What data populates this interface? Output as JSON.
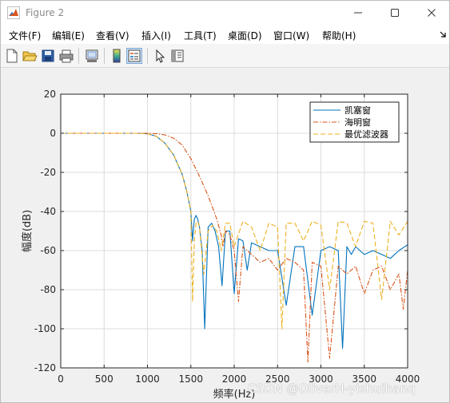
{
  "window": {
    "title": "Figure 2",
    "minimize_icon": "minimize-icon",
    "maximize_icon": "maximize-icon",
    "close_icon": "close-icon"
  },
  "menu": {
    "items": [
      "文件(F)",
      "编辑(E)",
      "查看(V)",
      "插入(I)",
      "工具(T)",
      "桌面(D)",
      "窗口(W)",
      "帮助(H)"
    ],
    "overflow_icon": "chevron-down-icon"
  },
  "toolbar": {
    "icons": [
      "new-figure-icon",
      "open-file-icon",
      "save-icon",
      "print-icon",
      "link-plot-icon",
      "colorbar-icon",
      "legend-icon",
      "pointer-icon",
      "property-inspector-icon"
    ]
  },
  "chart_data": {
    "type": "line",
    "title": "",
    "xlabel": "频率(Hz)",
    "ylabel": "幅度(dB)",
    "xlim": [
      0,
      4000
    ],
    "ylim": [
      -120,
      20
    ],
    "xticks": [
      0,
      500,
      1000,
      1500,
      2000,
      2500,
      3000,
      3500,
      4000
    ],
    "yticks": [
      20,
      0,
      -20,
      -40,
      -60,
      -80,
      -100,
      -120
    ],
    "grid": true,
    "legend_position": "top-right",
    "series": [
      {
        "name": "凯塞窗",
        "color": "#0072BD",
        "style": "solid",
        "x": [
          0,
          300,
          600,
          900,
          1000,
          1100,
          1200,
          1300,
          1400,
          1450,
          1500,
          1520,
          1540,
          1560,
          1580,
          1600,
          1630,
          1660,
          1700,
          1740,
          1780,
          1820,
          1860,
          1900,
          1950,
          2000,
          2050,
          2100,
          2150,
          2200,
          2300,
          2400,
          2500,
          2600,
          2700,
          2800,
          2900,
          3000,
          3100,
          3200,
          3250,
          3300,
          3350,
          3400,
          3500,
          3600,
          3700,
          3800,
          3900,
          4000
        ],
        "y": [
          0,
          0,
          0,
          0,
          -0.3,
          -1.5,
          -5,
          -11,
          -21,
          -29,
          -40,
          -55,
          -44,
          -42,
          -44,
          -48,
          -60,
          -100,
          -48,
          -46,
          -50,
          -58,
          -78,
          -50,
          -50,
          -82,
          -54,
          -55,
          -70,
          -56,
          -58,
          -60,
          -60,
          -88,
          -58,
          -58,
          -93,
          -60,
          -58,
          -60,
          -110,
          -58,
          -62,
          -58,
          -62,
          -60,
          -62,
          -64,
          -60,
          -57
        ]
      },
      {
        "name": "海明窗",
        "color": "#D95319",
        "style": "dashdot",
        "x": [
          0,
          300,
          600,
          900,
          1000,
          1100,
          1200,
          1300,
          1400,
          1500,
          1600,
          1700,
          1750,
          1800,
          1850,
          1870,
          1900,
          1950,
          2000,
          2050,
          2100,
          2200,
          2300,
          2400,
          2500,
          2600,
          2700,
          2800,
          2850,
          2900,
          3000,
          3100,
          3200,
          3300,
          3400,
          3500,
          3600,
          3700,
          3800,
          3900,
          3950,
          4000
        ],
        "y": [
          0,
          0,
          0,
          0,
          0,
          -0.2,
          -0.8,
          -2.5,
          -6,
          -13,
          -22,
          -32,
          -38,
          -44,
          -52,
          -58,
          -50,
          -52,
          -60,
          -86,
          -58,
          -62,
          -66,
          -64,
          -70,
          -64,
          -66,
          -70,
          -117,
          -66,
          -68,
          -115,
          -68,
          -72,
          -68,
          -82,
          -70,
          -68,
          -80,
          -72,
          -90,
          -70
        ]
      },
      {
        "name": "最优滤波器",
        "color": "#EDB120",
        "style": "dashed",
        "x": [
          0,
          300,
          600,
          900,
          1000,
          1100,
          1200,
          1300,
          1400,
          1450,
          1500,
          1520,
          1540,
          1560,
          1580,
          1600,
          1650,
          1700,
          1750,
          1800,
          1850,
          1900,
          1950,
          2000,
          2100,
          2200,
          2300,
          2400,
          2500,
          2550,
          2600,
          2700,
          2800,
          2900,
          3000,
          3100,
          3200,
          3300,
          3400,
          3500,
          3600,
          3700,
          3800,
          3900,
          4000
        ],
        "y": [
          0,
          0,
          0,
          0,
          -0.3,
          -1.5,
          -5,
          -11,
          -21,
          -29,
          -40,
          -86,
          -55,
          -46,
          -45,
          -48,
          -72,
          -50,
          -47,
          -50,
          -60,
          -46,
          -46,
          -58,
          -45,
          -48,
          -60,
          -46,
          -48,
          -100,
          -46,
          -46,
          -55,
          -45,
          -47,
          -80,
          -45,
          -46,
          -58,
          -45,
          -46,
          -85,
          -45,
          -52,
          -45
        ]
      }
    ]
  },
  "watermark": "CSDN @OliverH-yishuihanq"
}
